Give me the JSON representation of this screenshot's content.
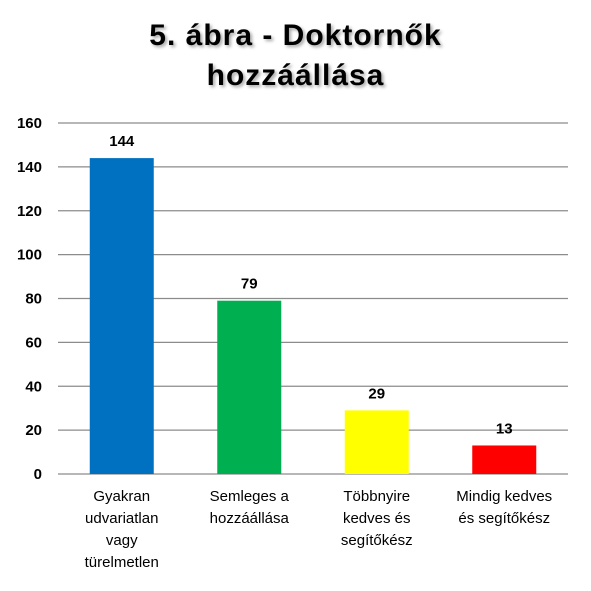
{
  "chart_data": {
    "type": "bar",
    "title_lines": [
      "5. ábra - Doktornők",
      "hozzáállása"
    ],
    "categories": [
      [
        "Gyakran",
        "udvariatlan",
        "vagy",
        "türelmetlen"
      ],
      [
        "Semleges a",
        "hozzáállása"
      ],
      [
        "Többnyire",
        "kedves és",
        "segítőkész"
      ],
      [
        "Mindig kedves",
        "és segítőkész"
      ]
    ],
    "values": [
      144,
      79,
      29,
      13
    ],
    "colors": [
      "#0070C0",
      "#00B050",
      "#FFFF00",
      "#FF0000"
    ],
    "ylim": [
      0,
      160
    ],
    "yticks": [
      0,
      20,
      40,
      60,
      80,
      100,
      120,
      140,
      160
    ],
    "grid": true,
    "legend": "none"
  }
}
